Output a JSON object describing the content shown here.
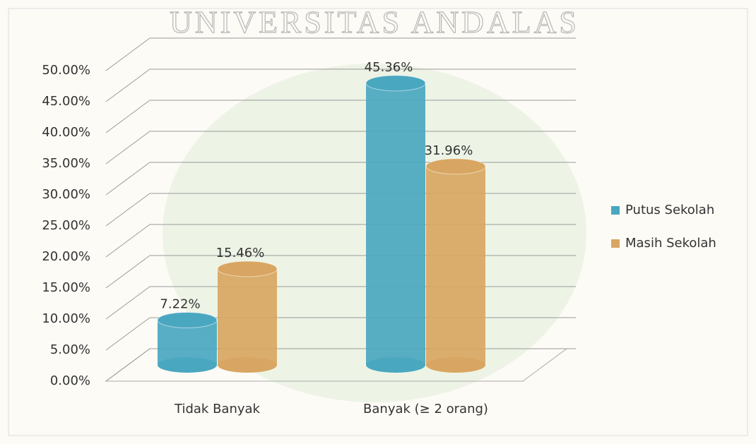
{
  "watermark": "UNIVERSITAS ANDALAS",
  "chart_data": {
    "type": "bar",
    "categories": [
      "Tidak Banyak",
      "Banyak (≥ 2 orang)"
    ],
    "series": [
      {
        "name": "Putus Sekolah",
        "color": "#4aa7c0",
        "values": [
          7.22,
          45.36
        ],
        "value_labels": [
          "7.22%",
          "45.36%"
        ]
      },
      {
        "name": "Masih Sekolah",
        "color": "#d8a662",
        "values": [
          15.46,
          31.96
        ],
        "value_labels": [
          "15.46%",
          "31.96%"
        ]
      }
    ],
    "ylim": [
      0,
      50
    ],
    "yticks": [
      {
        "value": 0,
        "label": "0.00%"
      },
      {
        "value": 5,
        "label": "5.00%"
      },
      {
        "value": 10,
        "label": "10.00%"
      },
      {
        "value": 15,
        "label": "15.00%"
      },
      {
        "value": 20,
        "label": "20.00%"
      },
      {
        "value": 25,
        "label": "25.00%"
      },
      {
        "value": 30,
        "label": "30.00%"
      },
      {
        "value": 35,
        "label": "35.00%"
      },
      {
        "value": 40,
        "label": "40.00%"
      },
      {
        "value": 45,
        "label": "45.00%"
      },
      {
        "value": 50,
        "label": "50.00%"
      }
    ],
    "grid": true,
    "legend": "right"
  }
}
